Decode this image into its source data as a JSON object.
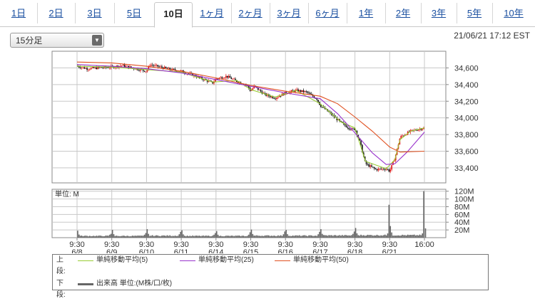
{
  "tabs": [
    {
      "label": "1日",
      "active": false
    },
    {
      "label": "2日",
      "active": false
    },
    {
      "label": "3日",
      "active": false
    },
    {
      "label": "5日",
      "active": false
    },
    {
      "label": "10日",
      "active": true
    },
    {
      "label": "1ヶ月",
      "active": false
    },
    {
      "label": "2ヶ月",
      "active": false
    },
    {
      "label": "3ヶ月",
      "active": false
    },
    {
      "label": "6ヶ月",
      "active": false
    },
    {
      "label": "1年",
      "active": false
    },
    {
      "label": "2年",
      "active": false
    },
    {
      "label": "3年",
      "active": false
    },
    {
      "label": "5年",
      "active": false
    },
    {
      "label": "10年",
      "active": false
    }
  ],
  "interval_select": {
    "value": "15分足"
  },
  "timestamp": "21/06/21 17:12 EST",
  "legend": {
    "upper_label": "上段:",
    "lower_label": "下段:",
    "items": [
      {
        "name": "単純移動平均(5)",
        "color": "#99cc33"
      },
      {
        "name": "単純移動平均(25)",
        "color": "#9933cc"
      },
      {
        "name": "単純移動平均(50)",
        "color": "#e05020"
      }
    ],
    "volume_item": {
      "name": "出来高 単位:(M株/口/枚)",
      "color": "#666666"
    }
  },
  "colors": {
    "up": "#e01010",
    "down": "#101010",
    "volume": "#666666",
    "grid": "#c8c8c8",
    "plot_border": "#888888"
  },
  "chart_data": [
    {
      "type": "candlestick",
      "interval": "15分足",
      "x_tick_labels": [
        {
          "time": "9:30",
          "date": "6/8"
        },
        {
          "time": "9:30",
          "date": "6/9"
        },
        {
          "time": "9:30",
          "date": "6/10"
        },
        {
          "time": "9:30",
          "date": "6/11"
        },
        {
          "time": "9:30",
          "date": "6/14"
        },
        {
          "time": "9:30",
          "date": "6/15"
        },
        {
          "time": "9:30",
          "date": "6/16"
        },
        {
          "time": "9:30",
          "date": "6/17"
        },
        {
          "time": "9:30",
          "date": "6/18"
        },
        {
          "time": "9:30",
          "date": "6/21"
        },
        {
          "time": "16:00",
          "date": ""
        }
      ],
      "y_ticks": [
        "33,400",
        "33,600",
        "33,800",
        "34,000",
        "34,200",
        "34,400",
        "34,600"
      ],
      "ylim": [
        33220,
        34800
      ],
      "close_path": [
        [
          0.0,
          34620
        ],
        [
          0.3,
          34590
        ],
        [
          0.6,
          34600
        ],
        [
          1.0,
          34610
        ],
        [
          1.3,
          34630
        ],
        [
          1.6,
          34600
        ],
        [
          2.0,
          34560
        ],
        [
          2.1,
          34640
        ],
        [
          2.4,
          34610
        ],
        [
          2.7,
          34580
        ],
        [
          3.0,
          34560
        ],
        [
          3.3,
          34520
        ],
        [
          3.6,
          34470
        ],
        [
          3.9,
          34420
        ],
        [
          4.0,
          34470
        ],
        [
          4.3,
          34500
        ],
        [
          4.6,
          34440
        ],
        [
          4.9,
          34390
        ],
        [
          5.0,
          34320
        ],
        [
          5.1,
          34380
        ],
        [
          5.4,
          34280
        ],
        [
          5.7,
          34240
        ],
        [
          6.0,
          34300
        ],
        [
          6.3,
          34330
        ],
        [
          6.6,
          34310
        ],
        [
          6.9,
          34230
        ],
        [
          7.0,
          34150
        ],
        [
          7.3,
          34050
        ],
        [
          7.6,
          33940
        ],
        [
          7.9,
          33860
        ],
        [
          8.0,
          33870
        ],
        [
          8.15,
          33700
        ],
        [
          8.3,
          33450
        ],
        [
          8.6,
          33380
        ],
        [
          8.9,
          33390
        ],
        [
          9.0,
          33360
        ],
        [
          9.15,
          33520
        ],
        [
          9.3,
          33770
        ],
        [
          9.6,
          33840
        ],
        [
          9.9,
          33870
        ],
        [
          10.0,
          33880
        ]
      ],
      "sma": {
        "5": [
          [
            0.0,
            34620
          ],
          [
            1.0,
            34610
          ],
          [
            2.0,
            34580
          ],
          [
            3.0,
            34550
          ],
          [
            3.9,
            34430
          ],
          [
            4.6,
            34450
          ],
          [
            5.0,
            34340
          ],
          [
            5.7,
            34250
          ],
          [
            6.3,
            34330
          ],
          [
            7.0,
            34170
          ],
          [
            7.6,
            33950
          ],
          [
            8.0,
            33880
          ],
          [
            8.3,
            33480
          ],
          [
            8.9,
            33390
          ],
          [
            9.15,
            33500
          ],
          [
            9.3,
            33740
          ],
          [
            9.6,
            33840
          ],
          [
            10.0,
            33880
          ]
        ],
        "25": [
          [
            0.0,
            34640
          ],
          [
            1.0,
            34620
          ],
          [
            2.0,
            34590
          ],
          [
            3.0,
            34540
          ],
          [
            4.0,
            34460
          ],
          [
            5.0,
            34380
          ],
          [
            6.0,
            34300
          ],
          [
            7.0,
            34230
          ],
          [
            7.5,
            34050
          ],
          [
            8.0,
            33820
          ],
          [
            8.5,
            33580
          ],
          [
            8.9,
            33440
          ],
          [
            9.15,
            33450
          ],
          [
            9.5,
            33590
          ],
          [
            10.0,
            33830
          ]
        ],
        "50": [
          [
            0.0,
            34670
          ],
          [
            1.0,
            34660
          ],
          [
            2.0,
            34620
          ],
          [
            3.0,
            34560
          ],
          [
            4.0,
            34480
          ],
          [
            5.0,
            34390
          ],
          [
            6.0,
            34320
          ],
          [
            7.0,
            34260
          ],
          [
            7.5,
            34170
          ],
          [
            8.0,
            34010
          ],
          [
            8.5,
            33840
          ],
          [
            9.0,
            33650
          ],
          [
            9.3,
            33590
          ],
          [
            10.0,
            33600
          ]
        ]
      }
    },
    {
      "type": "bar",
      "name": "出来高",
      "unit_label": "単位: M",
      "y_ticks": [
        "20M",
        "40M",
        "60M",
        "80M",
        "100M",
        "120M"
      ],
      "ylim": [
        0,
        125
      ],
      "day_volumes": [
        {
          "open": 18,
          "base": 3.5,
          "close": 10
        },
        {
          "open": 20,
          "base": 3.5,
          "close": 12
        },
        {
          "open": 22,
          "base": 4,
          "close": 15
        },
        {
          "open": 19,
          "base": 3.5,
          "close": 12
        },
        {
          "open": 17,
          "base": 3.5,
          "close": 14
        },
        {
          "open": 21,
          "base": 4,
          "close": 16
        },
        {
          "open": 20,
          "base": 4,
          "close": 15
        },
        {
          "open": 22,
          "base": 4.5,
          "close": 16
        },
        {
          "open": 25,
          "base": 5,
          "close": 85
        },
        {
          "open": 30,
          "base": 5,
          "close": 120
        }
      ],
      "last_open_bar": 24
    }
  ]
}
